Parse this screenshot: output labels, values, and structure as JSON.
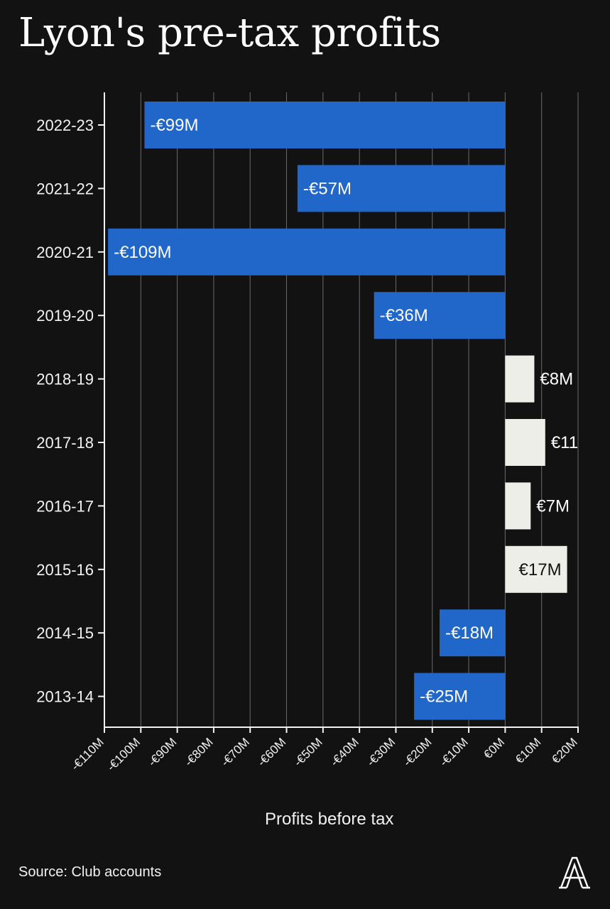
{
  "chart_data": {
    "type": "bar",
    "orientation": "horizontal",
    "title": "Lyon's pre-tax profits",
    "xlabel": "Profits before tax",
    "ylabel": "",
    "source": "Source: Club accounts",
    "categories": [
      "2022-23",
      "2021-22",
      "2020-21",
      "2019-20",
      "2018-19",
      "2017-18",
      "2016-17",
      "2015-16",
      "2014-15",
      "2013-14"
    ],
    "values": [
      -99,
      -57,
      -109,
      -36,
      8,
      11,
      7,
      17,
      -18,
      -25
    ],
    "data_labels": [
      "-€99M",
      "-€57M",
      "-€109M",
      "-€36M",
      "€8M",
      "€11",
      "€7M",
      "€17M",
      "-€18M",
      "-€25M"
    ],
    "xlim": [
      -110,
      20
    ],
    "xticks": [
      -110,
      -100,
      -90,
      -80,
      -70,
      -60,
      -50,
      -40,
      -30,
      -20,
      -10,
      0,
      10,
      20
    ],
    "xtick_labels": [
      "-€110M",
      "-€100M",
      "-€90M",
      "-€80M",
      "-€70M",
      "-€60M",
      "-€50M",
      "-€40M",
      "-€30M",
      "-€20M",
      "-€10M",
      "€0M",
      "€10M",
      "€20M"
    ],
    "grid": true,
    "colors": {
      "negative": "#2167c9",
      "positive": "#eeeee8",
      "background": "#121212",
      "grid": "#6a6a6a",
      "axis": "#f2f2f2"
    }
  },
  "brand": {
    "logo_icon": "athletic-a-logo-icon"
  }
}
